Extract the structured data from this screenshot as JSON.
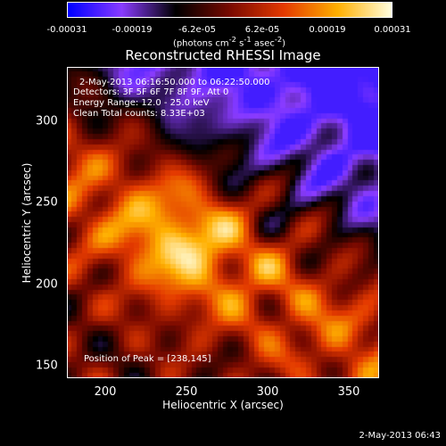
{
  "colorbar": {
    "ticks": [
      "-0.00031",
      "-0.00019",
      "-6.2e-05",
      "6.2e-05",
      "0.00019",
      "0.00031"
    ],
    "units_html": "(photons cm<sup>-2</sup> s<sup>-1</sup> asec<sup>-2</sup>)"
  },
  "chart_data": {
    "type": "heatmap",
    "title": "Reconstructed RHESSI Image",
    "xlabel": "Heliocentric X (arcsec)",
    "ylabel": "Heliocentric Y (arcsec)",
    "xlim": [
      178,
      370
    ],
    "ylim": [
      140,
      332
    ],
    "xticks": [
      "200",
      "250",
      "300",
      "350"
    ],
    "yticks": [
      "150",
      "200",
      "250",
      "300"
    ],
    "value_range": [
      -0.00031,
      0.00031
    ],
    "peak_position": [
      238,
      145
    ]
  },
  "annotations": {
    "time_range": "2-May-2013 06:16:50.000 to 06:22:50.000",
    "detectors": "Detectors: 3F 5F 6F 7F 8F 9F, Att 0",
    "energy": "Energy Range: 12.0 - 25.0 keV",
    "clean": "Clean    Total counts: 8.33E+03",
    "peak": "Position of Peak = [238,145]"
  },
  "timestamp": "2-May-2013 06:43",
  "colors": {
    "scale": [
      "#0000ff",
      "#8a3cff",
      "#000000",
      "#7a0a00",
      "#e43a00",
      "#ffb000",
      "#ffffe0"
    ]
  }
}
